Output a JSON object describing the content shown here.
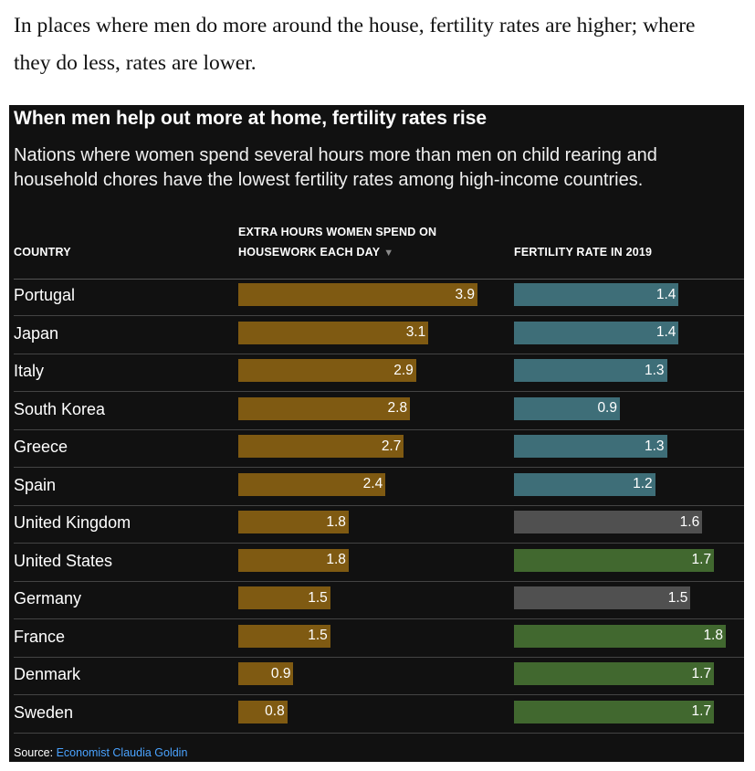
{
  "article": {
    "lead_text": "In places where men do more around the house, fertility rates are higher; where they do less, rates are lower."
  },
  "chart_data": {
    "type": "bar",
    "title": "When men help out more at home, fertility rates rise",
    "subtitle": "Nations where women spend several hours more than men on child rearing and household chores have the lowest fertility rates among high-income countries.",
    "columns": {
      "country": "COUNTRY",
      "housework_line1": "EXTRA HOURS WOMEN SPEND ON",
      "housework_line2": "HOUSEWORK EACH DAY",
      "fertility": "FERTILITY RATE IN 2019"
    },
    "sort": {
      "column": "housework",
      "direction": "descending",
      "indicator": "▼"
    },
    "housework_scale_max": 3.9,
    "fertility_scale_max": 1.8,
    "colors": {
      "housework": "#7f5a12",
      "fertility_low": "#3e6e78",
      "fertility_mid": "#505050",
      "fertility_high": "#41682f",
      "background": "#111111",
      "source_link": "#4aa3ff"
    },
    "rows": [
      {
        "country": "Portugal",
        "housework": 3.9,
        "housework_label": "3.9",
        "fertility": 1.4,
        "fertility_label": "1.4",
        "fertility_group": "low"
      },
      {
        "country": "Japan",
        "housework": 3.1,
        "housework_label": "3.1",
        "fertility": 1.4,
        "fertility_label": "1.4",
        "fertility_group": "low"
      },
      {
        "country": "Italy",
        "housework": 2.9,
        "housework_label": "2.9",
        "fertility": 1.3,
        "fertility_label": "1.3",
        "fertility_group": "low"
      },
      {
        "country": "South Korea",
        "housework": 2.8,
        "housework_label": "2.8",
        "fertility": 0.9,
        "fertility_label": "0.9",
        "fertility_group": "low"
      },
      {
        "country": "Greece",
        "housework": 2.7,
        "housework_label": "2.7",
        "fertility": 1.3,
        "fertility_label": "1.3",
        "fertility_group": "low"
      },
      {
        "country": "Spain",
        "housework": 2.4,
        "housework_label": "2.4",
        "fertility": 1.2,
        "fertility_label": "1.2",
        "fertility_group": "low"
      },
      {
        "country": "United Kingdom",
        "housework": 1.8,
        "housework_label": "1.8",
        "fertility": 1.6,
        "fertility_label": "1.6",
        "fertility_group": "mid"
      },
      {
        "country": "United States",
        "housework": 1.8,
        "housework_label": "1.8",
        "fertility": 1.7,
        "fertility_label": "1.7",
        "fertility_group": "high"
      },
      {
        "country": "Germany",
        "housework": 1.5,
        "housework_label": "1.5",
        "fertility": 1.5,
        "fertility_label": "1.5",
        "fertility_group": "mid"
      },
      {
        "country": "France",
        "housework": 1.5,
        "housework_label": "1.5",
        "fertility": 1.8,
        "fertility_label": "1.8",
        "fertility_group": "high"
      },
      {
        "country": "Denmark",
        "housework": 0.9,
        "housework_label": "0.9",
        "fertility": 1.7,
        "fertility_label": "1.7",
        "fertility_group": "high"
      },
      {
        "country": "Sweden",
        "housework": 0.8,
        "housework_label": "0.8",
        "fertility": 1.7,
        "fertility_label": "1.7",
        "fertility_group": "high"
      }
    ],
    "source_label": "Source:",
    "source_name": "Economist Claudia Goldin"
  }
}
